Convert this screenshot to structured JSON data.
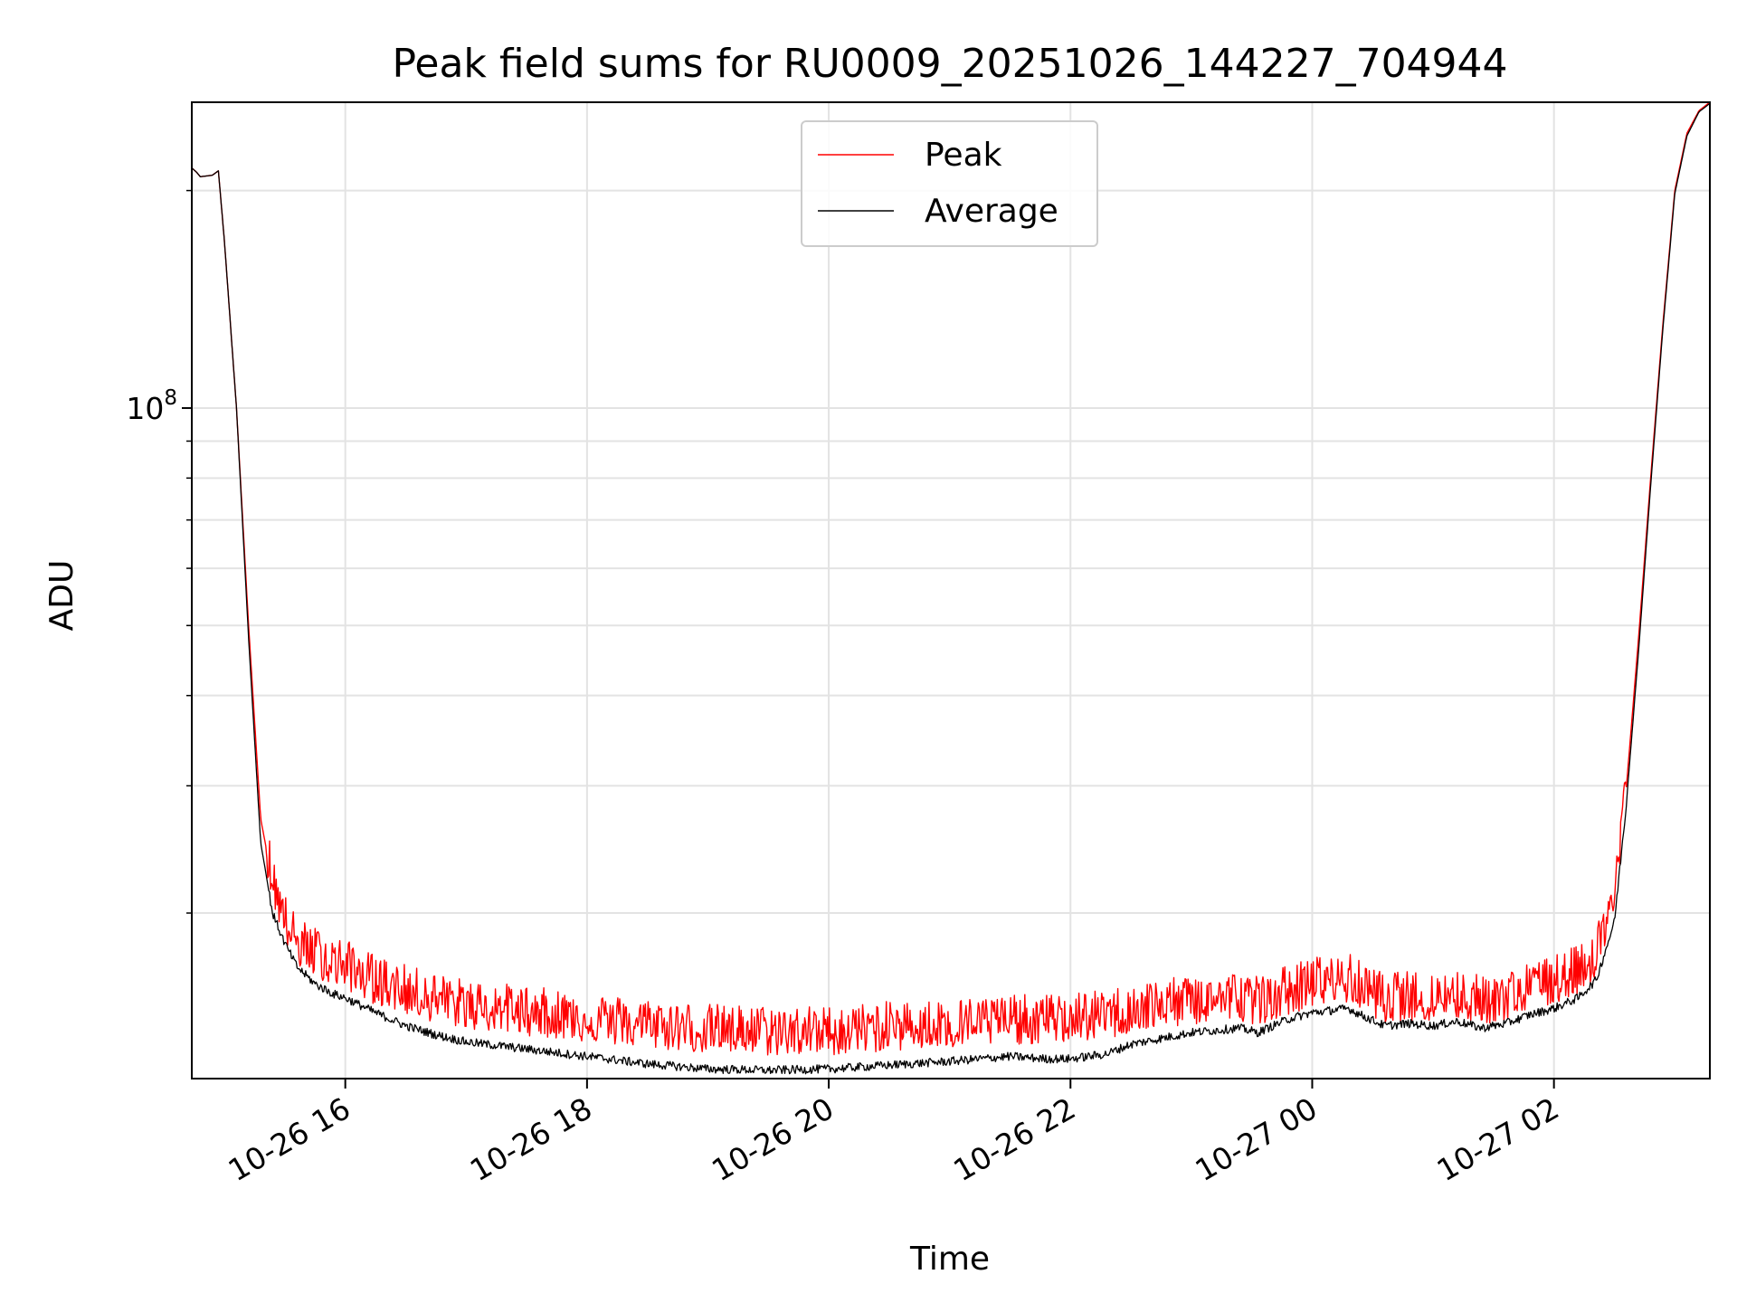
{
  "chart_data": {
    "type": "line",
    "title": "Peak field sums for RU0009_20251026_144227_704944",
    "xlabel": "Time",
    "ylabel": "ADU",
    "yscale": "log",
    "ylim": [
      11800000,
      265000000
    ],
    "xlim_hours": [
      14.73,
      27.29
    ],
    "grid": true,
    "legend_position": "upper-center",
    "x_ticks": [
      {
        "hour": 16,
        "label": "10-26 16"
      },
      {
        "hour": 18,
        "label": "10-26 18"
      },
      {
        "hour": 20,
        "label": "10-26 20"
      },
      {
        "hour": 22,
        "label": "10-26 22"
      },
      {
        "hour": 24,
        "label": "10-27 00"
      },
      {
        "hour": 26,
        "label": "10-27 02"
      }
    ],
    "y_major_ticks": [
      {
        "value": 100000000,
        "base": "10",
        "exp": "8"
      }
    ],
    "y_minor_ticks": [
      20000000,
      30000000,
      40000000,
      50000000,
      60000000,
      70000000,
      80000000,
      90000000,
      200000000
    ],
    "series": [
      {
        "name": "Peak",
        "color": "#ff0000",
        "spiky": true,
        "hours": [
          14.73,
          14.77,
          14.8,
          14.9,
          14.95,
          15.0,
          15.1,
          15.2,
          15.3,
          15.4,
          15.5,
          15.6,
          15.75,
          15.9,
          16.0,
          16.25,
          16.5,
          16.75,
          17.0,
          17.5,
          18.0,
          18.5,
          19.0,
          19.5,
          20.0,
          20.5,
          21.0,
          21.5,
          21.8,
          22.0,
          22.3,
          22.5,
          23.0,
          23.4,
          23.55,
          23.8,
          24.0,
          24.3,
          24.4,
          24.6,
          24.8,
          25.0,
          25.2,
          25.4,
          25.6,
          25.8,
          26.0,
          26.2,
          26.35,
          26.5,
          26.6,
          26.7,
          26.8,
          26.9,
          27.0,
          27.1,
          27.2,
          27.29
        ],
        "values": [
          215000000,
          212000000,
          209000000,
          210000000,
          213000000,
          170000000,
          100000000,
          50000000,
          27000000,
          22000000,
          19500000,
          18000000,
          17500000,
          17000000,
          16800000,
          16000000,
          15500000,
          15100000,
          14800000,
          14500000,
          14200000,
          13900000,
          13700000,
          13600000,
          13600000,
          13800000,
          13900000,
          14100000,
          14100000,
          14200000,
          14300000,
          14600000,
          15000000,
          15200000,
          15000000,
          15500000,
          15900000,
          16100000,
          15700000,
          15100000,
          15200000,
          15100000,
          15300000,
          15000000,
          15200000,
          15600000,
          16000000,
          16500000,
          17500000,
          21000000,
          30000000,
          48000000,
          80000000,
          130000000,
          200000000,
          240000000,
          258000000,
          265000000
        ]
      },
      {
        "name": "Average",
        "color": "#000000",
        "spiky": false,
        "hours": [
          14.73,
          14.77,
          14.8,
          14.9,
          14.95,
          15.0,
          15.1,
          15.2,
          15.3,
          15.4,
          15.5,
          15.6,
          15.75,
          15.9,
          16.0,
          16.25,
          16.5,
          16.75,
          17.0,
          17.5,
          18.0,
          18.5,
          19.0,
          19.5,
          20.0,
          20.5,
          21.0,
          21.5,
          21.8,
          22.0,
          22.3,
          22.5,
          23.0,
          23.4,
          23.55,
          23.8,
          24.0,
          24.3,
          24.4,
          24.6,
          24.8,
          25.0,
          25.2,
          25.4,
          25.6,
          25.8,
          26.0,
          26.2,
          26.35,
          26.5,
          26.6,
          26.7,
          26.8,
          26.9,
          27.0,
          27.1,
          27.2,
          27.29
        ],
        "values": [
          215000000,
          212000000,
          209000000,
          210000000,
          213000000,
          170000000,
          100000000,
          48000000,
          25000000,
          20000000,
          18200000,
          16900000,
          16000000,
          15500000,
          15300000,
          14600000,
          14000000,
          13600000,
          13300000,
          13000000,
          12700000,
          12400000,
          12200000,
          12150000,
          12200000,
          12350000,
          12500000,
          12700000,
          12600000,
          12600000,
          12800000,
          13200000,
          13700000,
          13900000,
          13700000,
          14300000,
          14600000,
          14800000,
          14500000,
          14000000,
          14100000,
          14000000,
          14200000,
          13900000,
          14100000,
          14500000,
          14800000,
          15300000,
          16200000,
          19500000,
          28500000,
          46000000,
          78000000,
          128000000,
          198000000,
          238000000,
          257000000,
          264000000
        ]
      }
    ]
  }
}
